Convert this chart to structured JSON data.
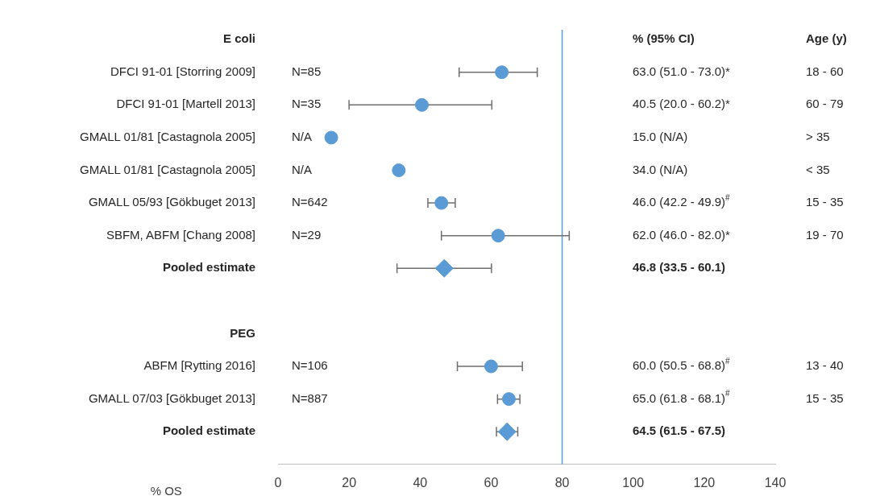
{
  "chart_data": {
    "type": "scatter",
    "orientation": "horizontal",
    "xlabel": "% OS",
    "categories": [
      "E coli",
      "DFCI 91-01 [Storring 2009]",
      "DFCI 91-01 [Martell 2013]",
      "GMALL 01/81 [Castagnola 2005]",
      "GMALL 01/81 [Castagnola 2005]",
      "GMALL 05/93 [Gökbuget 2013]",
      "SBFM, ABFM [Chang 2008]",
      "Pooled estimate",
      null,
      "PEG",
      "ABFM [Rytting 2016]",
      "GMALL 07/03 [Gökbuget 2013]",
      "Pooled estimate"
    ],
    "y2_categories": [
      "Age (y)",
      "18 - 60",
      "60 - 79",
      "> 35",
      "< 35",
      "15 - 35",
      "19 - 70",
      null,
      null,
      null,
      "13 - 40",
      "15 - 35",
      null
    ],
    "series": [
      {
        "color": "#5b9bd5",
        "marker": "circle",
        "values": [
          null,
          63.0,
          40.5,
          15.0,
          34.0,
          46.0,
          62.0,
          null,
          null,
          null,
          60.0,
          65.0,
          null
        ],
        "errors": [
          null,
          [
            51.0,
            73.0
          ],
          [
            20.0,
            60.2
          ],
          null,
          null,
          [
            42.2,
            49.9
          ],
          [
            46.0,
            82.0
          ],
          null,
          null,
          null,
          [
            50.5,
            68.8
          ],
          [
            61.8,
            68.1
          ],
          null
        ]
      },
      {
        "color": "#5b9bd5",
        "marker": "diamond",
        "values": [
          null,
          null,
          null,
          null,
          null,
          null,
          null,
          46.8,
          null,
          null,
          null,
          null,
          64.5
        ],
        "errors": [
          null,
          null,
          null,
          null,
          null,
          null,
          null,
          [
            33.5,
            60.1
          ],
          null,
          null,
          null,
          null,
          [
            61.5,
            67.5
          ]
        ]
      }
    ],
    "xlim": [
      0,
      140
    ],
    "xticks": [
      0,
      20,
      40,
      60,
      80,
      100,
      120,
      140
    ],
    "ref_lines": [
      {
        "axis": "x",
        "value": 80,
        "color": "#5b9bd5"
      }
    ],
    "annotations": [
      "% (95% CI)",
      "N=85",
      "N=35",
      "N/A",
      "N/A",
      "N=642",
      "N=29",
      "N=106",
      "N=887",
      "63.0 (51.0 - 73.0)*",
      "40.5 (20.0 - 60.2)*",
      "15.0 (N/A)",
      "34.0 (N/A)",
      "46.0 (42.2 - 49.9)$^{#}$",
      "62.0 (46.0 - 82.0)*",
      "46.8 (33.5 - 60.1)",
      "60.0 (50.5 - 68.8)$^{#}$",
      "65.0 (61.8 - 68.1)$^{#}$",
      "64.5 (61.5 - 67.5)"
    ]
  }
}
